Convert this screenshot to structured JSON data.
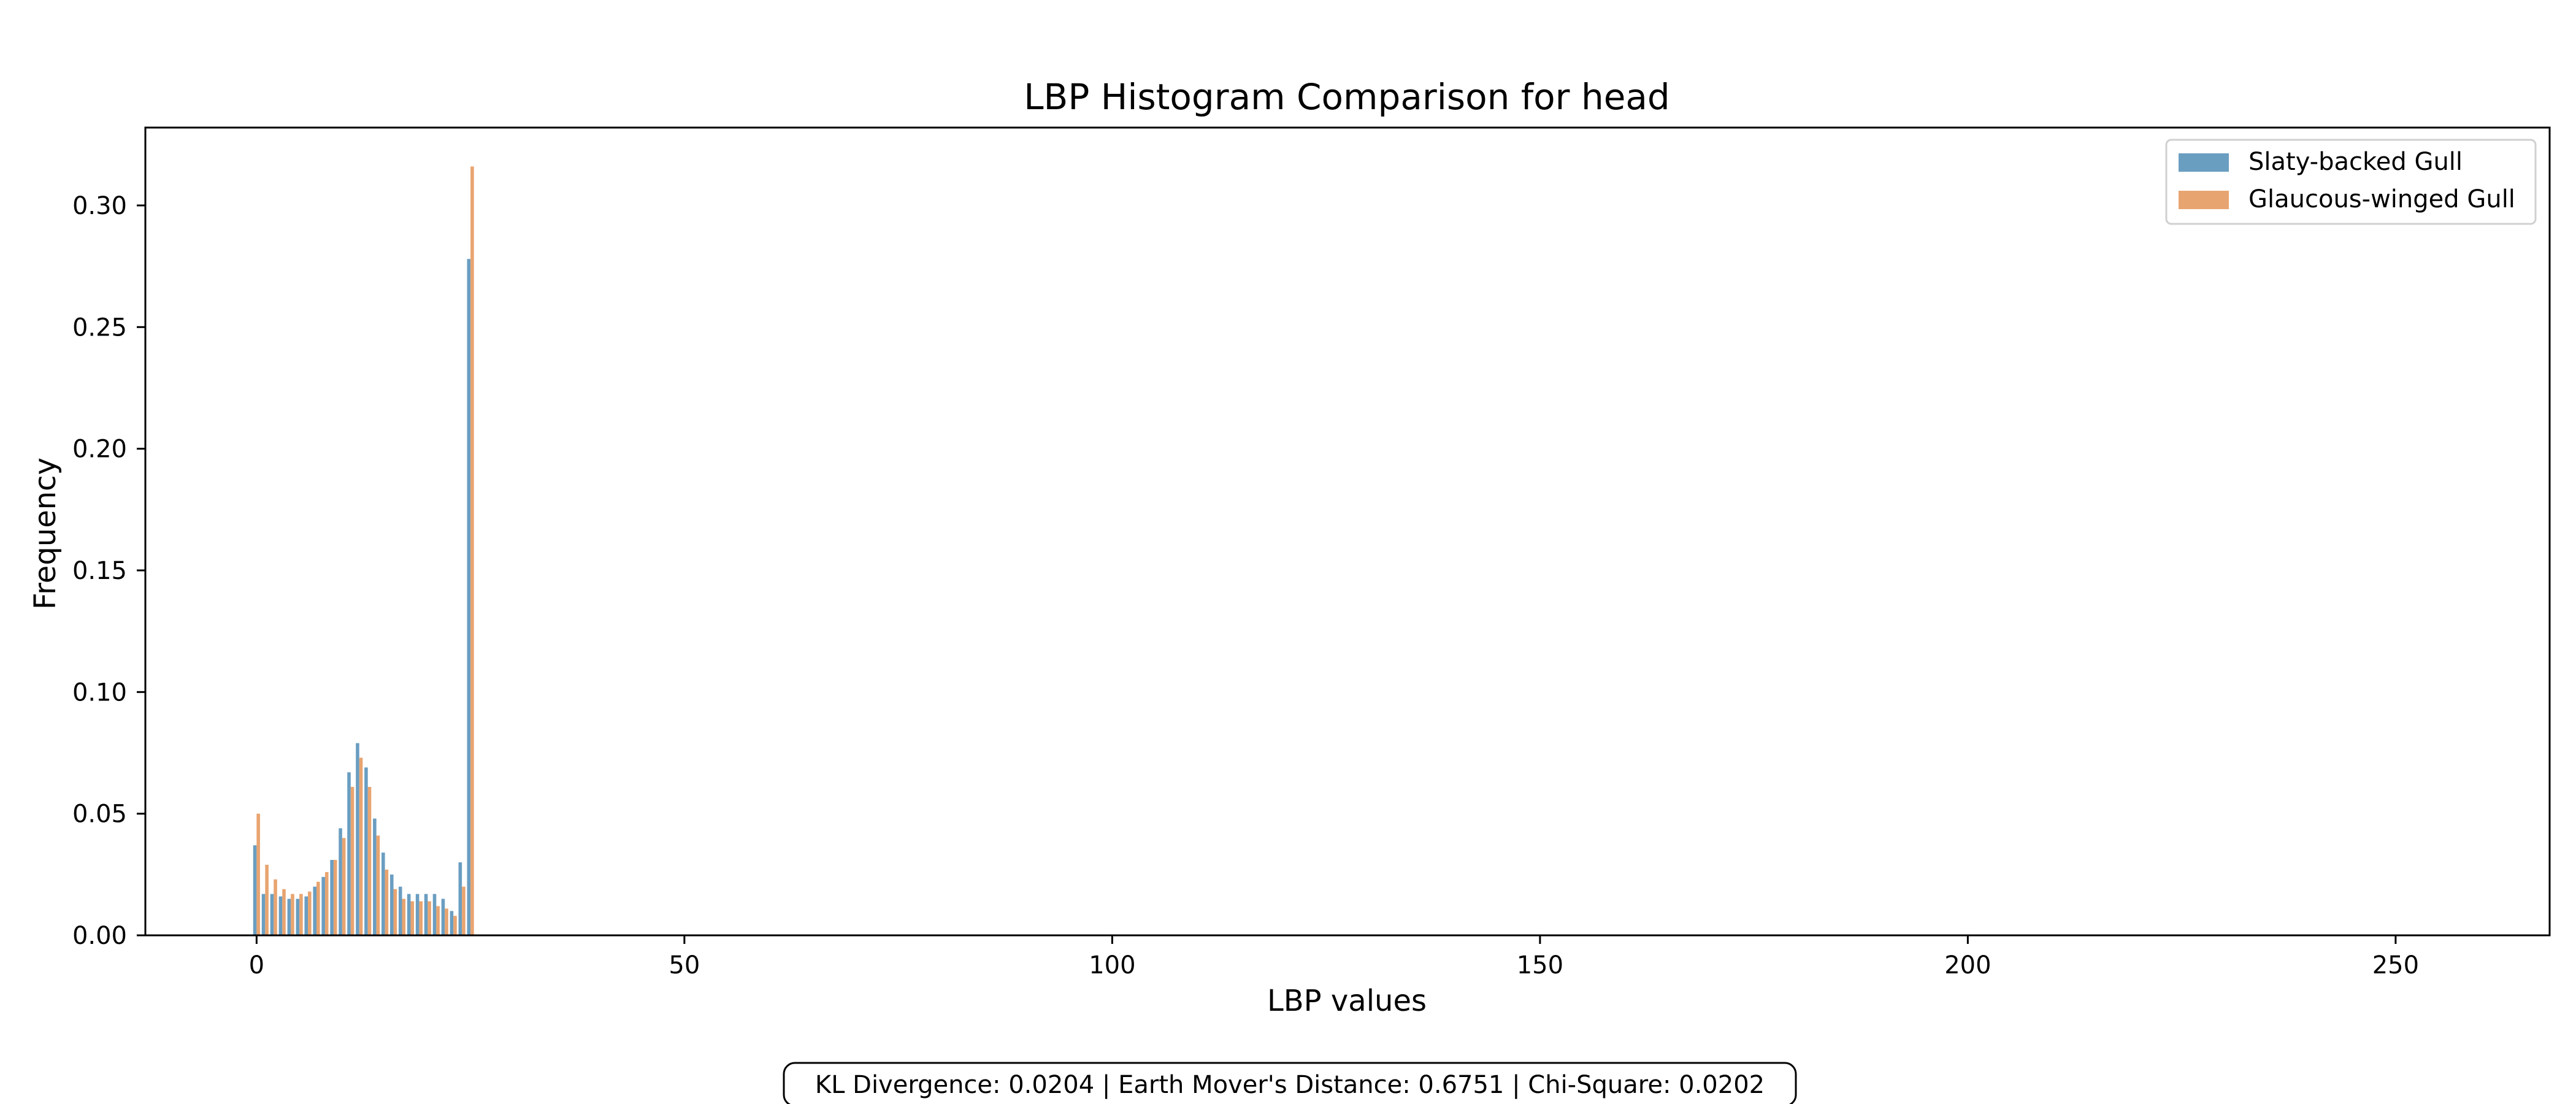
{
  "chart_data": {
    "type": "bar",
    "title": "LBP Histogram Comparison for head",
    "xlabel": "LBP values",
    "ylabel": "Frequency",
    "xlim": [
      -13,
      268
    ],
    "ylim": [
      0,
      0.332
    ],
    "x_ticks": [
      0,
      50,
      100,
      150,
      200,
      250
    ],
    "y_ticks": [
      0.0,
      0.05,
      0.1,
      0.15,
      0.2,
      0.25,
      0.3
    ],
    "grid": false,
    "legend_position": "top-right",
    "x": [
      0,
      1,
      2,
      3,
      4,
      5,
      6,
      7,
      8,
      9,
      10,
      11,
      12,
      13,
      14,
      15,
      16,
      17,
      18,
      19,
      20,
      21,
      22,
      23,
      24,
      25
    ],
    "series": [
      {
        "name": "Slaty-backed Gull",
        "color": "#6a9ec1",
        "values": [
          0.037,
          0.017,
          0.017,
          0.016,
          0.015,
          0.015,
          0.016,
          0.02,
          0.024,
          0.031,
          0.044,
          0.067,
          0.079,
          0.069,
          0.048,
          0.034,
          0.025,
          0.02,
          0.017,
          0.017,
          0.017,
          0.017,
          0.015,
          0.01,
          0.03,
          0.278
        ]
      },
      {
        "name": "Glaucous-winged Gull",
        "color": "#e8a470",
        "values": [
          0.05,
          0.029,
          0.023,
          0.019,
          0.017,
          0.017,
          0.018,
          0.022,
          0.026,
          0.031,
          0.04,
          0.061,
          0.073,
          0.061,
          0.041,
          0.027,
          0.019,
          0.015,
          0.014,
          0.014,
          0.014,
          0.012,
          0.011,
          0.008,
          0.02,
          0.316
        ]
      }
    ]
  },
  "metrics_text": "KL Divergence: 0.0204 | Earth Mover's Distance: 0.6751 | Chi-Square: 0.0202"
}
